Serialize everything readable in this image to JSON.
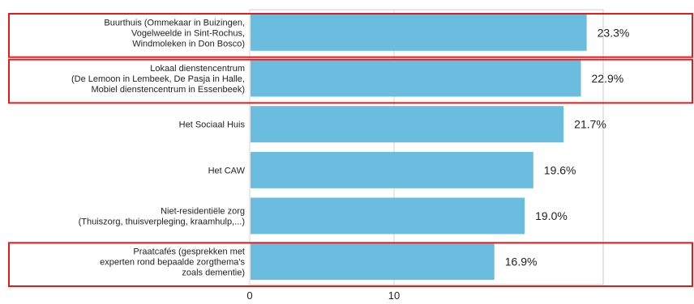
{
  "chart_data": {
    "type": "bar",
    "orientation": "horizontal",
    "categories": [
      [
        "Buurthuis (Ommekaar in Buizingen,",
        "Vogelweelde in Sint-Rochus,",
        "Windmoleken in Don Bosco)"
      ],
      [
        "Lokaal dienstencentrum",
        "(De Lemoon in Lembeek, De Pasja in Halle,",
        "Mobiel dienstencentrum in Essenbeek)"
      ],
      [
        "Het Sociaal Huis"
      ],
      [
        "Het CAW"
      ],
      [
        "Niet-residentiële zorg",
        "(Thuiszorg, thuisverpleging, kraamhulp,...)"
      ],
      [
        "Praatcafés (gesprekken met",
        "experten rond bepaalde zorgthema's",
        "zoals dementie)"
      ]
    ],
    "values": [
      23.3,
      22.9,
      21.7,
      19.6,
      19.0,
      16.9
    ],
    "value_labels": [
      "23.3%",
      "22.9%",
      "21.7%",
      "19.6%",
      "19.0%",
      "16.9%"
    ],
    "highlighted": [
      true,
      true,
      false,
      false,
      false,
      true
    ],
    "xlim": [
      0,
      24.5
    ],
    "xticks": [
      0,
      10
    ],
    "xtick_labels": [
      "0",
      "10"
    ],
    "grid": true,
    "colors": {
      "bar": "#6bbde0",
      "highlight": "#e31b1b",
      "grid": "#d4d4d4",
      "axis": "#cccccc"
    }
  }
}
